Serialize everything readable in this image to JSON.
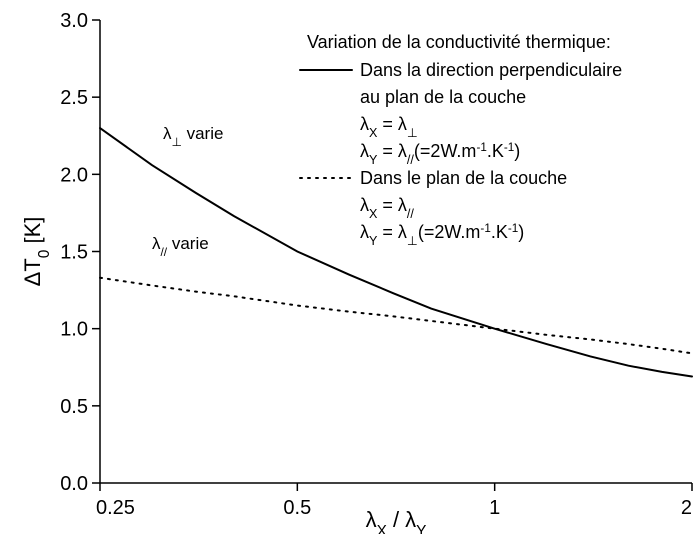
{
  "chart_data": {
    "type": "line",
    "xlog": true,
    "xlabel": [
      {
        "text": "λ"
      },
      {
        "sub": "X"
      },
      {
        "text": " / λ"
      },
      {
        "sub": "Y"
      }
    ],
    "ylabel": [
      {
        "text": "ΔT"
      },
      {
        "sub": "0"
      },
      {
        "text": " [K]"
      }
    ],
    "x": [
      0.25,
      0.3,
      0.35,
      0.4,
      0.5,
      0.6,
      0.7,
      0.8,
      1,
      1.2,
      1.4,
      1.6,
      1.8,
      2
    ],
    "xlim": [
      0.25,
      2
    ],
    "xticks": [
      0.25,
      0.5,
      1,
      2
    ],
    "ylim": [
      0,
      3
    ],
    "yticks": [
      {
        "value": 0,
        "label": "0.0"
      },
      0.5,
      {
        "value": 1,
        "label": "1.0"
      },
      1.5,
      {
        "value": 2,
        "label": "2.0"
      },
      2.5,
      {
        "value": 3,
        "label": "3.0"
      }
    ],
    "legend_title": "Variation de la conductivité thermique:",
    "series": [
      {
        "name": [
          "Dans la direction perpendiculaire",
          "au plan de la couche"
        ],
        "notes": [
          [
            {
              "text": "λ"
            },
            {
              "sub": "X"
            },
            {
              "text": " = λ"
            },
            {
              "sub": "⊥"
            }
          ],
          [
            {
              "text": "λ"
            },
            {
              "sub": "Y"
            },
            {
              "text": " = λ"
            },
            {
              "sub": "//"
            },
            {
              "text": "(=2W.m"
            },
            {
              "sup": "-1"
            },
            {
              "text": ".K"
            },
            {
              "sup": "-1"
            },
            {
              "text": ")"
            }
          ]
        ],
        "color": "#000000",
        "dash": "solid",
        "values": [
          2.3,
          2.06,
          1.88,
          1.73,
          1.5,
          1.35,
          1.23,
          1.13,
          1.0,
          0.9,
          0.82,
          0.76,
          0.72,
          0.69
        ]
      },
      {
        "name": [
          "Dans le plan de la couche"
        ],
        "notes": [
          [
            {
              "text": "λ"
            },
            {
              "sub": "X"
            },
            {
              "text": " = λ"
            },
            {
              "sub": "//"
            }
          ],
          [
            {
              "text": "λ"
            },
            {
              "sub": "Y"
            },
            {
              "text": " = λ"
            },
            {
              "sub": "⊥"
            },
            {
              "text": "(=2W.m"
            },
            {
              "sup": "-1"
            },
            {
              "text": ".K"
            },
            {
              "sup": "-1"
            },
            {
              "text": ")"
            }
          ]
        ],
        "color": "#000000",
        "dash": "dotted",
        "values": [
          1.33,
          1.28,
          1.24,
          1.21,
          1.15,
          1.11,
          1.08,
          1.05,
          1.0,
          0.96,
          0.93,
          0.9,
          0.87,
          0.84
        ]
      }
    ],
    "annotations": [
      [
        {
          "text": "λ"
        },
        {
          "sub": "⊥"
        },
        {
          "text": " varie"
        }
      ],
      [
        {
          "text": "λ"
        },
        {
          "sub": "//"
        },
        {
          "text": " varie"
        }
      ]
    ]
  }
}
